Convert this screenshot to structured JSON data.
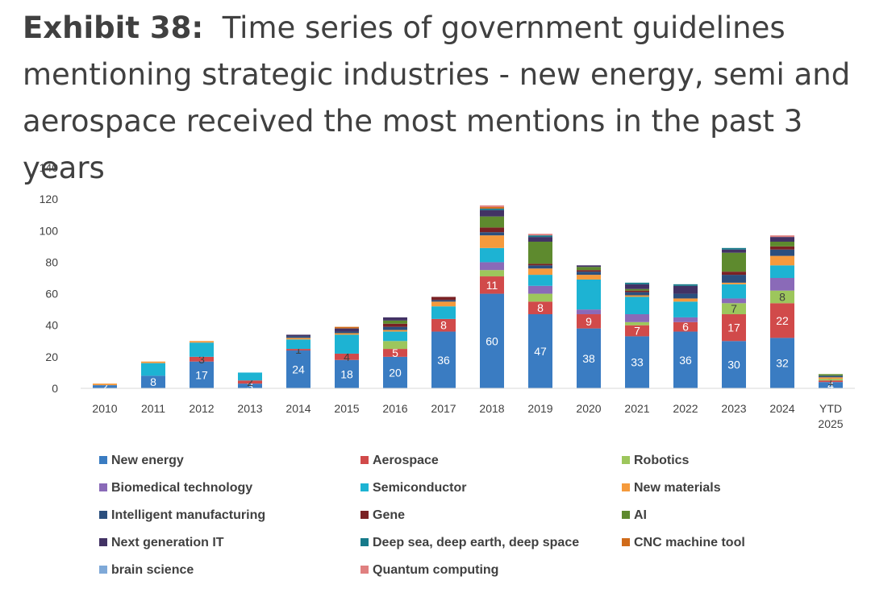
{
  "title": {
    "lead": "Exhibit 38:",
    "text": "Time series of government guidelines mentioning strategic industries - new energy, semi and aerospace received the most mentions in the past 3 years"
  },
  "chart_data": {
    "type": "bar",
    "stacked": true,
    "categories": [
      "2010",
      "2011",
      "2012",
      "2013",
      "2014",
      "2015",
      "2016",
      "2017",
      "2018",
      "2019",
      "2020",
      "2021",
      "2022",
      "2023",
      "2024",
      "YTD 2025"
    ],
    "ylim": [
      0,
      140
    ],
    "yticks": [
      0,
      20,
      40,
      60,
      80,
      100,
      120,
      140
    ],
    "grid": false,
    "legend_position": "bottom",
    "series": [
      {
        "name": "New energy",
        "color": "#3a7cc2",
        "values": [
          2,
          8,
          17,
          3,
          24,
          18,
          20,
          36,
          60,
          47,
          38,
          33,
          36,
          30,
          32,
          4
        ],
        "labels": [
          "2",
          "8",
          "17",
          "3",
          "24",
          "18",
          "20",
          "36",
          "60",
          "47",
          "38",
          "33",
          "36",
          "30",
          "32",
          "4"
        ]
      },
      {
        "name": "Aerospace",
        "color": "#d14a4a",
        "values": [
          0,
          0,
          3,
          2,
          1,
          4,
          5,
          8,
          11,
          8,
          9,
          7,
          6,
          17,
          22,
          1
        ],
        "labels": [
          "",
          "",
          "3",
          "2",
          "1",
          "4",
          "5",
          "8",
          "11",
          "8",
          "9",
          "7",
          "6",
          "17",
          "22",
          "1"
        ]
      },
      {
        "name": "Robotics",
        "color": "#9dc65c",
        "values": [
          0,
          0,
          0,
          0,
          0,
          0,
          5,
          0,
          4,
          5,
          0,
          2,
          0,
          7,
          8,
          1
        ],
        "labels": [
          "",
          "",
          "",
          "",
          "",
          "",
          "",
          "",
          "",
          "",
          "",
          "",
          "",
          "7",
          "8",
          ""
        ]
      },
      {
        "name": "Biomedical technology",
        "color": "#8a6ab8",
        "values": [
          0,
          0,
          0,
          0,
          0,
          0,
          0,
          0,
          5,
          5,
          3,
          5,
          3,
          3,
          8,
          0
        ],
        "labels": []
      },
      {
        "name": "Semiconductor",
        "color": "#1db3d3",
        "values": [
          0,
          8,
          9,
          5,
          6,
          12,
          6,
          8,
          9,
          7,
          19,
          11,
          10,
          9,
          8,
          0
        ],
        "labels": []
      },
      {
        "name": "New materials",
        "color": "#f59a3c",
        "values": [
          1,
          1,
          1,
          0,
          1,
          1,
          1,
          3,
          8,
          4,
          3,
          1,
          2,
          1,
          6,
          1
        ],
        "labels": []
      },
      {
        "name": "Intelligent manufacturing",
        "color": "#2b4f7e",
        "values": [
          0,
          0,
          0,
          0,
          1,
          1,
          2,
          1,
          2,
          2,
          2,
          2,
          3,
          5,
          4,
          1
        ],
        "labels": []
      },
      {
        "name": "Gene",
        "color": "#7a2124",
        "values": [
          0,
          0,
          0,
          0,
          0,
          0,
          2,
          2,
          3,
          1,
          1,
          1,
          0,
          2,
          2,
          0
        ],
        "labels": []
      },
      {
        "name": "AI",
        "color": "#5e8a2e",
        "values": [
          0,
          0,
          0,
          0,
          0,
          0,
          2,
          0,
          7,
          14,
          2,
          1,
          0,
          12,
          3,
          1
        ],
        "labels": []
      },
      {
        "name": "Next generation IT",
        "color": "#423264",
        "values": [
          0,
          0,
          0,
          0,
          1,
          2,
          2,
          0,
          4,
          3,
          1,
          3,
          5,
          2,
          3,
          0
        ],
        "labels": []
      },
      {
        "name": "Deep sea, deep earth, deep space",
        "color": "#167a8a",
        "values": [
          0,
          0,
          0,
          0,
          0,
          0,
          0,
          0,
          1,
          1,
          0,
          1,
          1,
          1,
          0,
          0
        ],
        "labels": []
      },
      {
        "name": "CNC machine tool",
        "color": "#d06b1a",
        "values": [
          0,
          0,
          0,
          0,
          0,
          1,
          0,
          0,
          1,
          0,
          0,
          0,
          0,
          0,
          0,
          0
        ],
        "labels": []
      },
      {
        "name": "brain science",
        "color": "#7fa9d8",
        "values": [
          0,
          0,
          0,
          0,
          0,
          0,
          0,
          0,
          0,
          0,
          0,
          0,
          0,
          0,
          0,
          0
        ],
        "labels": []
      },
      {
        "name": "Quantum computing",
        "color": "#e08080",
        "values": [
          0,
          0,
          0,
          0,
          0,
          0,
          0,
          0,
          1,
          1,
          0,
          0,
          0,
          0,
          1,
          0
        ],
        "labels": []
      }
    ]
  }
}
